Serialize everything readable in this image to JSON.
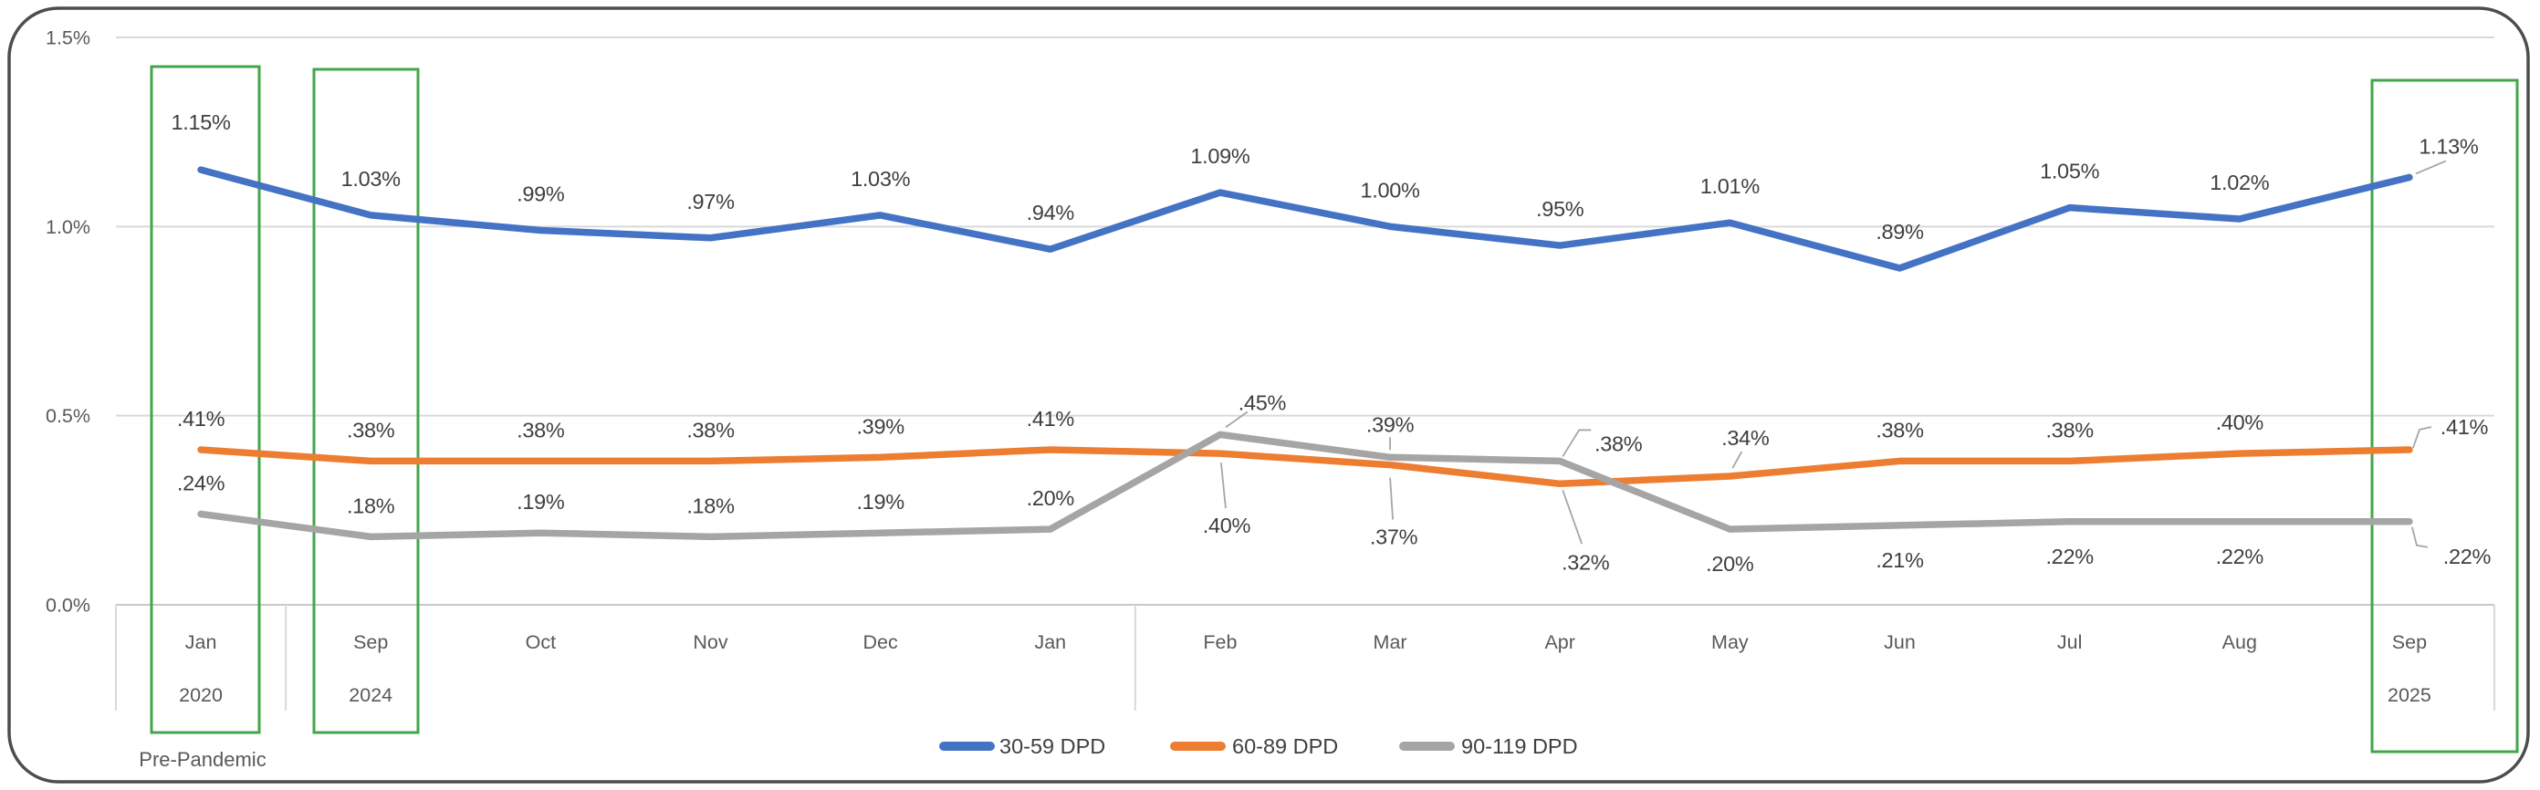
{
  "chart_data": {
    "type": "line",
    "categories": [
      "Jan",
      "Sep",
      "Oct",
      "Nov",
      "Dec",
      "Jan",
      "Feb",
      "Mar",
      "Apr",
      "May",
      "Jun",
      "Jul",
      "Aug",
      "Sep"
    ],
    "category_years": [
      "2020",
      "2024",
      "",
      "",
      "",
      "",
      "",
      "",
      "",
      "",
      "",
      "",
      "",
      "2025"
    ],
    "series": [
      {
        "name": "30-59 DPD",
        "color": "#4472C4",
        "values": [
          1.15,
          1.03,
          0.99,
          0.97,
          1.03,
          0.94,
          1.09,
          1.0,
          0.95,
          1.01,
          0.89,
          1.05,
          1.02,
          1.13
        ],
        "labels": [
          "1.15%",
          "1.03%",
          ".99%",
          ".97%",
          "1.03%",
          ".94%",
          "1.09%",
          "1.00%",
          ".95%",
          "1.01%",
          ".89%",
          "1.05%",
          "1.02%",
          "1.13%"
        ]
      },
      {
        "name": "60-89 DPD",
        "color": "#ED7D31",
        "values": [
          0.41,
          0.38,
          0.38,
          0.38,
          0.39,
          0.41,
          0.4,
          0.37,
          0.32,
          0.34,
          0.38,
          0.38,
          0.4,
          0.41
        ],
        "labels": [
          ".41%",
          ".38%",
          ".38%",
          ".38%",
          ".39%",
          ".41%",
          ".40%",
          ".37%",
          ".32%",
          ".34%",
          ".38%",
          ".38%",
          ".40%",
          ".41%"
        ]
      },
      {
        "name": "90-119 DPD",
        "color": "#A5A5A5",
        "values": [
          0.24,
          0.18,
          0.19,
          0.18,
          0.19,
          0.2,
          0.45,
          0.39,
          0.38,
          0.2,
          0.21,
          0.22,
          0.22,
          0.22
        ],
        "labels": [
          ".24%",
          ".18%",
          ".19%",
          ".18%",
          ".19%",
          ".20%",
          ".45%",
          ".39%",
          ".38%",
          ".20%",
          ".21%",
          ".22%",
          ".22%",
          ".22%"
        ]
      }
    ],
    "y_ticks": [
      {
        "value": 0.0,
        "label": "0.0%"
      },
      {
        "value": 0.5,
        "label": "0.5%"
      },
      {
        "value": 1.0,
        "label": "1.0%"
      },
      {
        "value": 1.5,
        "label": "1.5%"
      }
    ],
    "ylim": [
      0,
      1.5
    ],
    "grid": true,
    "legend_position": "bottom",
    "annotation": {
      "pre_pandemic_label": "Pre-Pandemic",
      "highlighted_categories": [
        "Jan 2020",
        "Sep 2024",
        "Sep 2025"
      ]
    }
  },
  "colors": {
    "highlight_box": "#43A649",
    "gridline": "#D9D9D9",
    "axis_line": "#C8C8C8",
    "frame_border": "#4D4D4D",
    "leader_line": "#A6A6A6",
    "data_label_text": "#3F3F3F",
    "axis_text": "#595959",
    "legend_text": "#404040"
  }
}
